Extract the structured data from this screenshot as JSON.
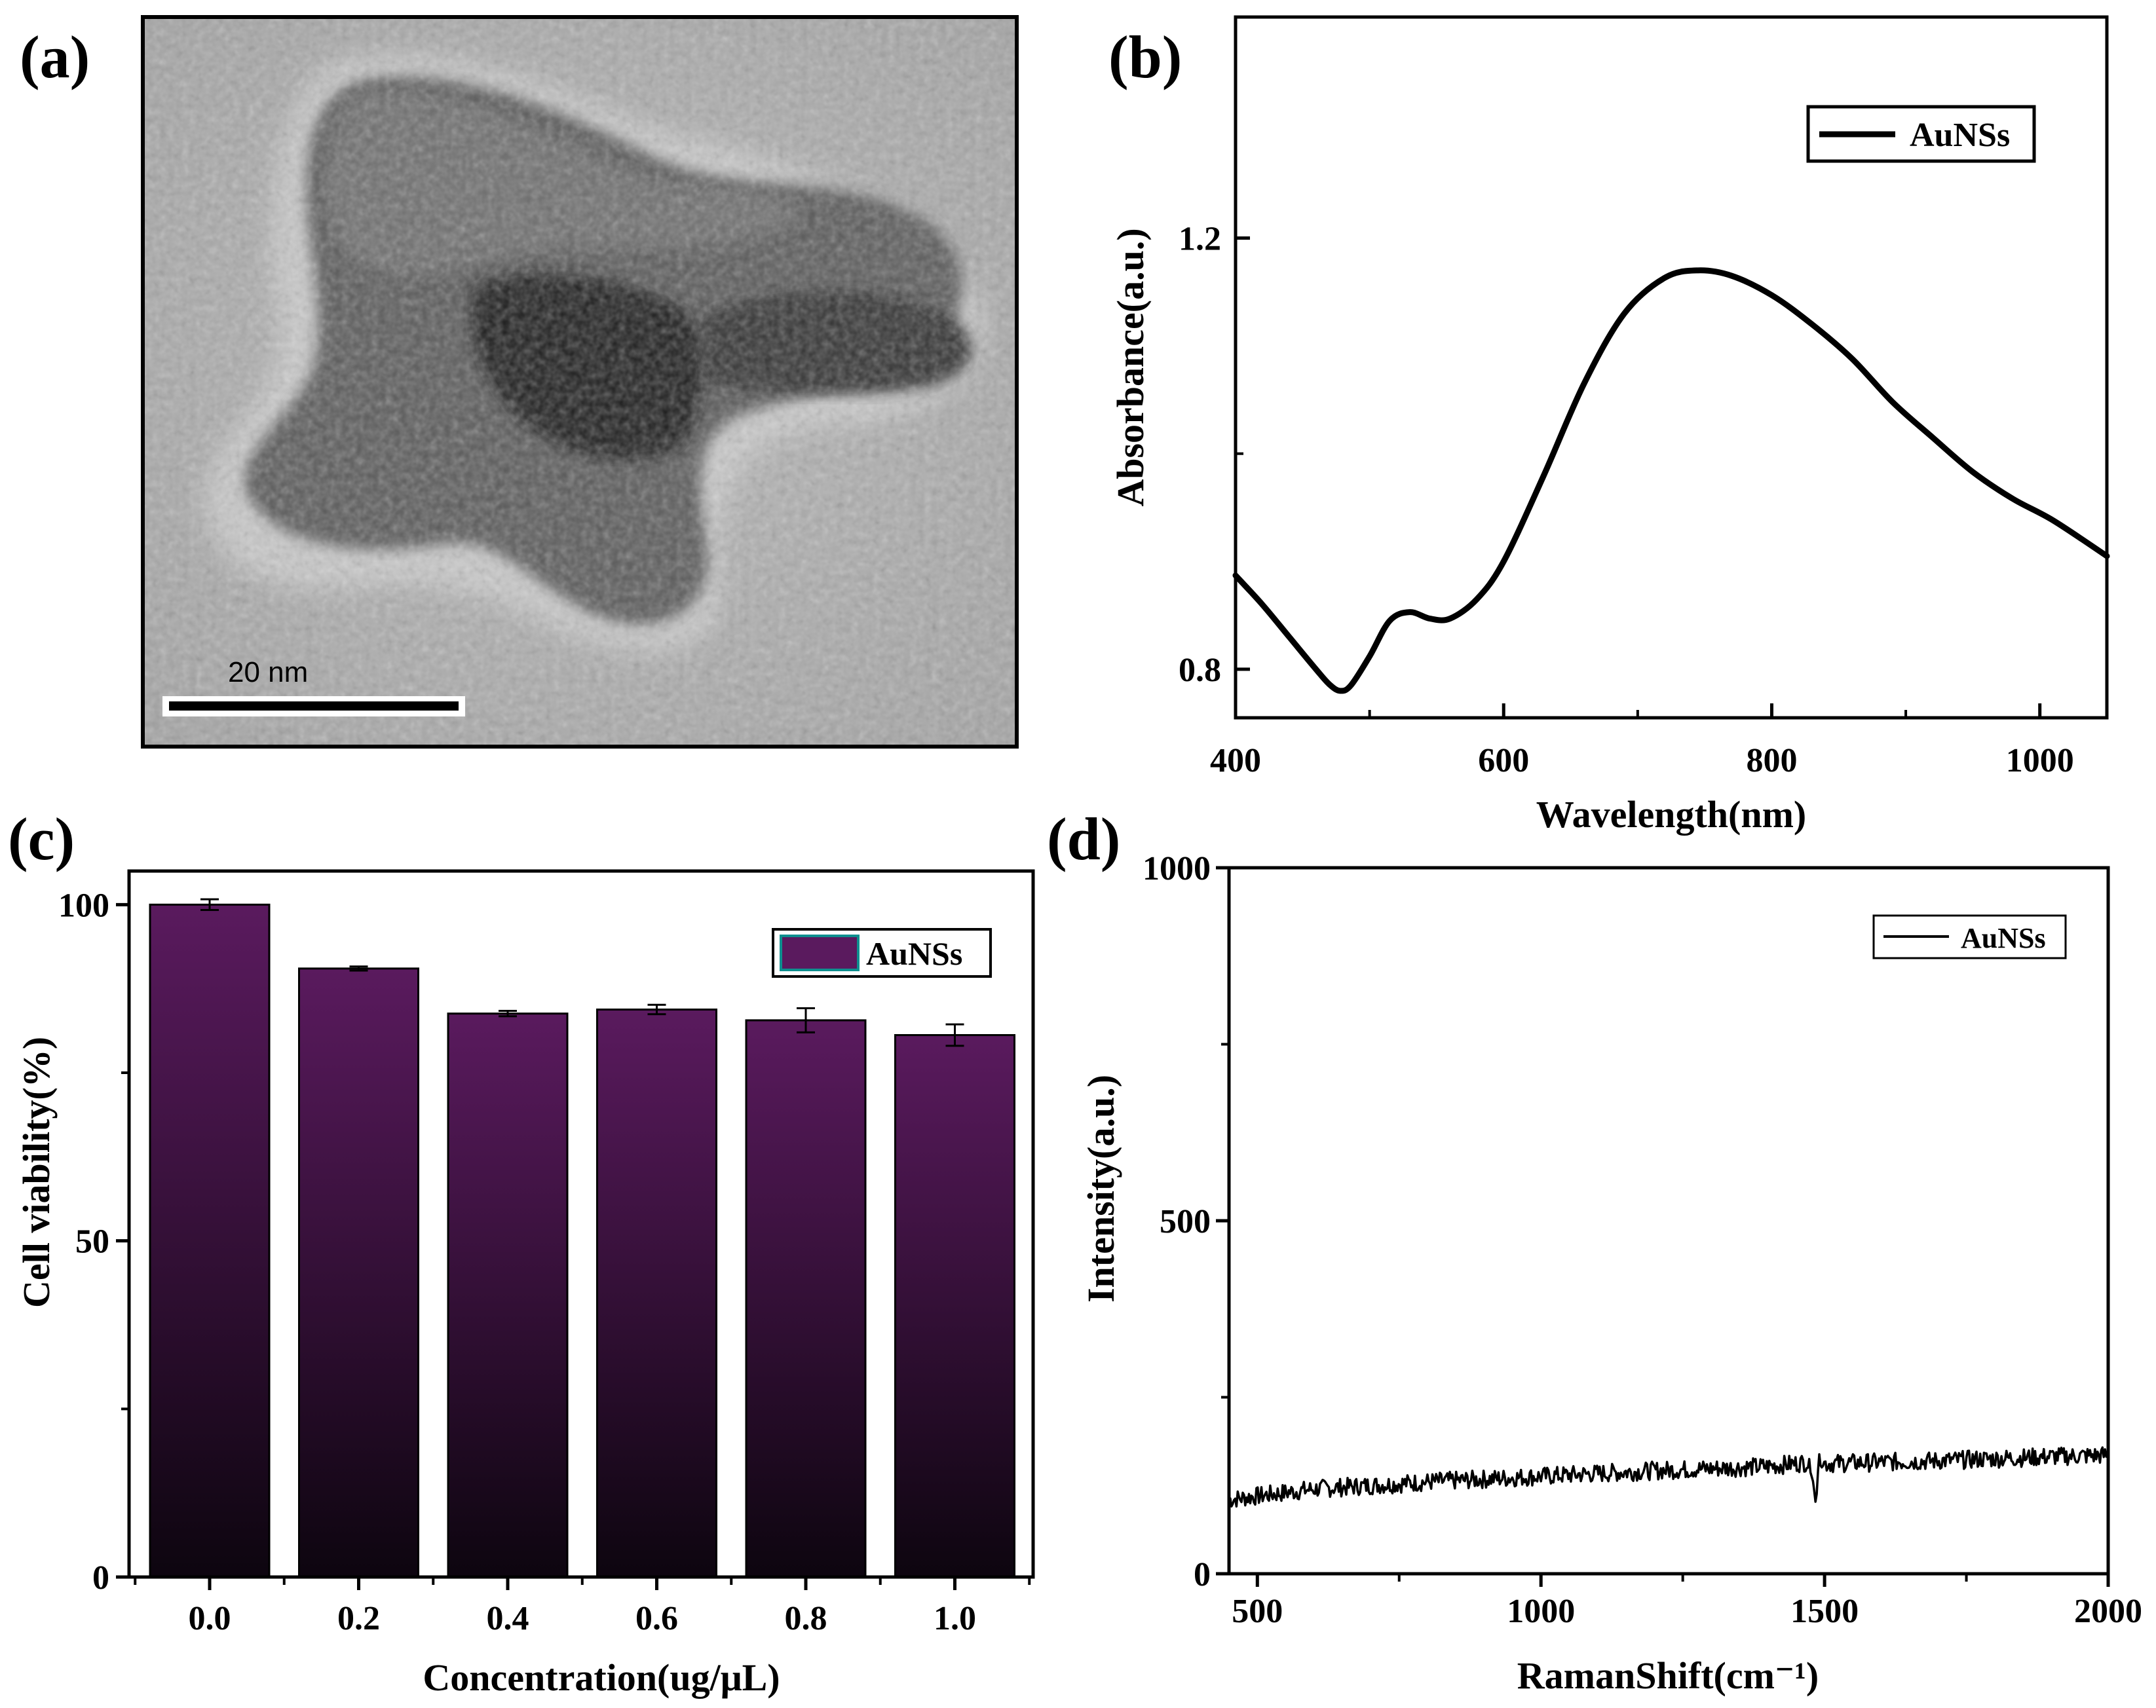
{
  "panels": {
    "a": {
      "label": "(a)",
      "scale_bar_text": "20 nm",
      "image_description_icon": "tem-nanostar-image"
    },
    "b": {
      "label": "(b)"
    },
    "c": {
      "label": "(c)"
    },
    "d": {
      "label": "(d)"
    }
  },
  "colors": {
    "bar_top": "#5a1a5e",
    "bar_bottom": "#0d050f",
    "line": "#000000"
  },
  "chart_data": [
    {
      "id": "b",
      "type": "line",
      "title": "",
      "xlabel": "Wavelength(nm)",
      "ylabel": "Absorbance(a.u.)",
      "xlim": [
        400,
        1050
      ],
      "ylim": [
        0.755,
        1.405
      ],
      "xticks": [
        400,
        600,
        800,
        1000
      ],
      "xtick_labels": [
        "400",
        "600",
        "800",
        "1000"
      ],
      "yticks": [
        0.8,
        1.2
      ],
      "ytick_labels": [
        "0.8",
        "1.2"
      ],
      "legend": {
        "entries": [
          "AuNSs"
        ],
        "position": "top-right"
      },
      "series": [
        {
          "name": "AuNSs",
          "x": [
            400,
            420,
            440,
            460,
            470,
            478,
            486,
            500,
            515,
            530,
            545,
            560,
            580,
            600,
            630,
            660,
            690,
            720,
            745,
            770,
            800,
            830,
            860,
            890,
            920,
            950,
            980,
            1010,
            1050
          ],
          "y": [
            0.887,
            0.86,
            0.83,
            0.8,
            0.786,
            0.78,
            0.785,
            0.812,
            0.845,
            0.853,
            0.847,
            0.847,
            0.865,
            0.9,
            0.98,
            1.065,
            1.13,
            1.163,
            1.17,
            1.165,
            1.147,
            1.12,
            1.088,
            1.048,
            1.015,
            0.983,
            0.958,
            0.938,
            0.905
          ]
        }
      ]
    },
    {
      "id": "c",
      "type": "bar",
      "title": "",
      "xlabel": "Concentration(ug/μL)",
      "ylabel": "Cell viability(%)",
      "categories": [
        "0.0",
        "0.2",
        "0.4",
        "0.6",
        "0.8",
        "1.0"
      ],
      "ylim": [
        0,
        105
      ],
      "yticks": [
        0,
        50,
        100
      ],
      "ytick_labels": [
        "0",
        "50",
        "100"
      ],
      "legend": {
        "entries": [
          "AuNSs"
        ],
        "position": "top-right"
      },
      "series": [
        {
          "name": "AuNSs",
          "values": [
            100,
            90.5,
            83.8,
            84.4,
            82.8,
            80.6
          ],
          "errors": [
            0.8,
            0.3,
            0.4,
            0.7,
            1.8,
            1.6
          ]
        }
      ]
    },
    {
      "id": "d",
      "type": "line",
      "title": "",
      "xlabel": "RamanShift(cm⁻¹)",
      "ylabel": "Intensity(a.u.)",
      "xlim": [
        450,
        2000
      ],
      "ylim": [
        0,
        1000
      ],
      "xticks": [
        500,
        1000,
        1500,
        2000
      ],
      "xtick_labels": [
        "500",
        "1000",
        "1500",
        "2000"
      ],
      "yticks": [
        0,
        500,
        1000
      ],
      "ytick_labels": [
        "0",
        "500",
        "1000"
      ],
      "legend": {
        "entries": [
          "AuNSs"
        ],
        "position": "top-right"
      },
      "series": [
        {
          "name": "AuNSs",
          "x": [
            450,
            500,
            550,
            600,
            700,
            800,
            900,
            1000,
            1100,
            1200,
            1300,
            1400,
            1470,
            1480,
            1485,
            1490,
            1500,
            1600,
            1700,
            1800,
            1900,
            2000
          ],
          "y": [
            105,
            110,
            115,
            120,
            125,
            130,
            134,
            138,
            142,
            146,
            149,
            152,
            158,
            130,
            95,
            170,
            156,
            158,
            160,
            163,
            166,
            168
          ]
        }
      ]
    }
  ]
}
